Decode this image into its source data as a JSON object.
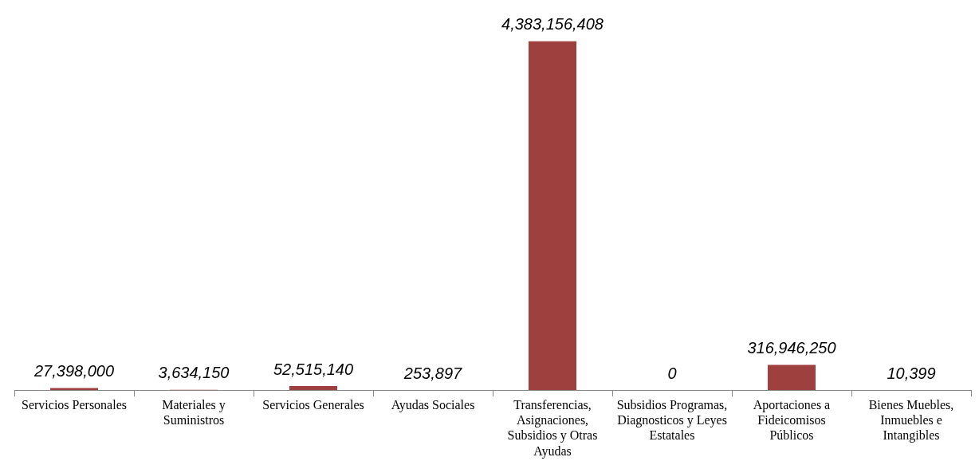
{
  "chart_data": {
    "type": "bar",
    "categories": [
      "Servicios Personales",
      "Materiales y Suministros",
      "Servicios Generales",
      "Ayudas Sociales",
      "Transferencias, Asignaciones, Subsidios y Otras Ayudas",
      "Subsidios Programas, Diagnosticos y Leyes Estatales",
      "Aportaciones a Fideicomisos Públicos",
      "Bienes Muebles, Inmuebles e Intangibles"
    ],
    "values": [
      27398000,
      3634150,
      52515140,
      253897,
      4383156408,
      0,
      316946250,
      10399
    ],
    "value_labels": [
      "27,398,000",
      "3,634,150",
      "52,515,140",
      "253,897",
      "4,383,156,408",
      "0",
      "316,946,250",
      "10,399"
    ],
    "color": "#9e413e",
    "relative": false,
    "grid": false,
    "legend": false
  }
}
